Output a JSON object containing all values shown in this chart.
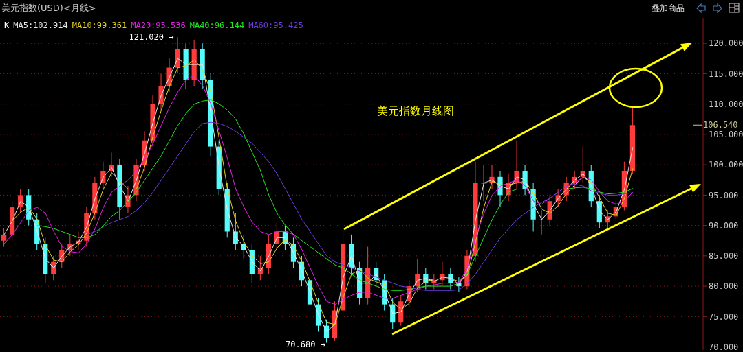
{
  "chart_data": {
    "type": "candlestick",
    "title": "美元指数(USD)<月线>",
    "categories": [
      null,
      null,
      null,
      null,
      null,
      null,
      null,
      null,
      null,
      null,
      null,
      null,
      null,
      null,
      null,
      null,
      null,
      null,
      null,
      null,
      null,
      null,
      null,
      null,
      null,
      null,
      null,
      null,
      null,
      null,
      null,
      null,
      null,
      null,
      null,
      null,
      null,
      null,
      null,
      null,
      null,
      null,
      null,
      null,
      null,
      null,
      null,
      null,
      null,
      null,
      null,
      null,
      null,
      null,
      null,
      null,
      null,
      null,
      null,
      null,
      null,
      null,
      null,
      null,
      null,
      null,
      null,
      null,
      null,
      null,
      null,
      null,
      null,
      null,
      null,
      null,
      null,
      null,
      null,
      null,
      null,
      null,
      null,
      null,
      null
    ],
    "series": [
      {
        "ohlc": [
          [
            87.5,
            89.5,
            86.5,
            88.5
          ],
          [
            88.5,
            94,
            87.5,
            93
          ],
          [
            93,
            96,
            92,
            95
          ],
          [
            95,
            96,
            90,
            91
          ],
          [
            91,
            92,
            86,
            87
          ],
          [
            87,
            88,
            80.5,
            82
          ],
          [
            82,
            85,
            81,
            84
          ],
          [
            84,
            87,
            83,
            86
          ],
          [
            86,
            88.5,
            85,
            87
          ],
          [
            87,
            89,
            86,
            87.5
          ],
          [
            87.5,
            93,
            86.5,
            92
          ],
          [
            92,
            98,
            91,
            97
          ],
          [
            97,
            100.5,
            96,
            99
          ],
          [
            99,
            102,
            98,
            100
          ],
          [
            100,
            101,
            91,
            93
          ],
          [
            93,
            96.5,
            92,
            95
          ],
          [
            95,
            101,
            94,
            100
          ],
          [
            100,
            105.5,
            99,
            104
          ],
          [
            104,
            111.5,
            103,
            110
          ],
          [
            110,
            115,
            109,
            113
          ],
          [
            113,
            117.5,
            112,
            116
          ],
          [
            116,
            121.02,
            115,
            119
          ],
          [
            119,
            120,
            112.5,
            114
          ],
          [
            114,
            120.5,
            113,
            119
          ],
          [
            119,
            120,
            112.5,
            114
          ],
          [
            114,
            115,
            101.5,
            103
          ],
          [
            103,
            104,
            95,
            96
          ],
          [
            96,
            97,
            88,
            89
          ],
          [
            89,
            92,
            86,
            87
          ],
          [
            87,
            88.5,
            84.5,
            86
          ],
          [
            86,
            87,
            80.5,
            82
          ],
          [
            82,
            85,
            81,
            83
          ],
          [
            83,
            88.5,
            82,
            87
          ],
          [
            87,
            90.5,
            86,
            89
          ],
          [
            89,
            90,
            86,
            87
          ],
          [
            87,
            88,
            83,
            84
          ],
          [
            84,
            85,
            80,
            81
          ],
          [
            81,
            82,
            76,
            77
          ],
          [
            77,
            78,
            72.5,
            73.5
          ],
          [
            73.5,
            74.5,
            70.68,
            71.5
          ],
          [
            71.5,
            77.5,
            71,
            76
          ],
          [
            76,
            89.5,
            75,
            87
          ],
          [
            87,
            88.5,
            82,
            83
          ],
          [
            83,
            84,
            77,
            78
          ],
          [
            78,
            86.5,
            77,
            83
          ],
          [
            83,
            84,
            80,
            81
          ],
          [
            81,
            82,
            76,
            77
          ],
          [
            77,
            78,
            73,
            74
          ],
          [
            74,
            78.5,
            73.5,
            77.5
          ],
          [
            77.5,
            81,
            76.5,
            80
          ],
          [
            80,
            84.5,
            79,
            82
          ],
          [
            82,
            83,
            79.5,
            80.5
          ],
          [
            80.5,
            82,
            79.5,
            81
          ],
          [
            81,
            84,
            80,
            82
          ],
          [
            82,
            83,
            79.5,
            80.5
          ],
          [
            80.5,
            81.5,
            79,
            80
          ],
          [
            80,
            86,
            79.5,
            85
          ],
          [
            85,
            100.5,
            84,
            97
          ],
          [
            97,
            100,
            94,
            97
          ],
          [
            97,
            100,
            96,
            98
          ],
          [
            98,
            99,
            93,
            95
          ],
          [
            95,
            98.5,
            94,
            97
          ],
          [
            97,
            104,
            96,
            99
          ],
          [
            99,
            100,
            95,
            96
          ],
          [
            96,
            97,
            89,
            91
          ],
          [
            91,
            92.5,
            88.5,
            91
          ],
          [
            91,
            95,
            90,
            94
          ],
          [
            94,
            96,
            93,
            95
          ],
          [
            95,
            98,
            94,
            97
          ],
          [
            97,
            99,
            96,
            98
          ],
          [
            98,
            103,
            97,
            99
          ],
          [
            99,
            100,
            93,
            94
          ],
          [
            94,
            95,
            89.5,
            90.5
          ],
          [
            90.5,
            92.5,
            89.5,
            91.5
          ],
          [
            91.5,
            94,
            91,
            93
          ],
          [
            93,
            100.5,
            92.5,
            99
          ],
          [
            99,
            109.3,
            98.5,
            106.54
          ],
          null,
          null,
          null,
          null,
          null,
          null,
          null,
          null
        ]
      },
      {
        "name": "MA5:102.914",
        "type": "line",
        "color": "#e8e8e8",
        "values": [
          88.5,
          90.8,
          94,
          93,
          89,
          84.5,
          83,
          85,
          86.5,
          87.3,
          89.8,
          94.5,
          98,
          99.5,
          96.5,
          94,
          97.5,
          102,
          107,
          111.5,
          114.5,
          117.5,
          116.5,
          116.5,
          116.5,
          108.5,
          99.5,
          92.5,
          88,
          86.5,
          84,
          82.5,
          85,
          88,
          88,
          85.5,
          82.5,
          79,
          75.3,
          72.5,
          73.8,
          81.5,
          85,
          80.5,
          80.5,
          82,
          79,
          75.5,
          75.8,
          78.8,
          81,
          81.3,
          80.8,
          81.5,
          81.3,
          80.3,
          82.5,
          91,
          97,
          97.5,
          96.5,
          96,
          98,
          97.5,
          93.5,
          91,
          92.5,
          94.5,
          96,
          97.5,
          98.5,
          96.5,
          92.3,
          91,
          92.3,
          96,
          102.9,
          null,
          null,
          null,
          null,
          null,
          null,
          null,
          null
        ]
      },
      {
        "name": "MA10:99.361",
        "type": "line",
        "color": "#e6d21e",
        "values": [
          null,
          90.8,
          92.2,
          93,
          91,
          86.7,
          84.3,
          84,
          85.7,
          86.8,
          88.8,
          92.2,
          96,
          98.7,
          97.3,
          96,
          96,
          99.7,
          104.7,
          109,
          113,
          116,
          116.3,
          117.3,
          115.7,
          112,
          104.3,
          96,
          90.7,
          87.3,
          85,
          83.7,
          84,
          86.3,
          87.7,
          86.7,
          84,
          80.7,
          77.2,
          74,
          73.7,
          78.2,
          82,
          82.7,
          81.3,
          80.7,
          80.3,
          77.3,
          76.2,
          77.2,
          79.8,
          80.8,
          81.2,
          81.2,
          81.2,
          80.8,
          81.8,
          87.3,
          93,
          97.3,
          96.7,
          96.7,
          97,
          97.3,
          95.3,
          92.7,
          92,
          93.3,
          95.3,
          96.7,
          98,
          97,
          94.5,
          92,
          91.7,
          94.5,
          99.4,
          null,
          null,
          null,
          null,
          null,
          null,
          null,
          null
        ]
      },
      {
        "name": "MA20:95.536",
        "type": "line",
        "color": "#e61ee6",
        "values": [
          87,
          88.5,
          90.5,
          92.5,
          93,
          92,
          89,
          86.5,
          85.7,
          85.5,
          87,
          89.5,
          93,
          95.5,
          96.5,
          97.5,
          99,
          101,
          103.5,
          106.5,
          109.5,
          112,
          114,
          114.7,
          113,
          110,
          105.5,
          101,
          96,
          93,
          90.5,
          89,
          88.5,
          89,
          89,
          88.5,
          86,
          83,
          80,
          77.5,
          77,
          77.8,
          78.5,
          79,
          79,
          78.5,
          78,
          78,
          78.5,
          79,
          79.5,
          80,
          80.2,
          80.5,
          80.5,
          80.6,
          83,
          88,
          92,
          95,
          96.5,
          97,
          97.5,
          96.5,
          94,
          93.5,
          94.5,
          95.5,
          96.5,
          97,
          98,
          97.5,
          95.5,
          94,
          93.5,
          94,
          95.5,
          null,
          null,
          null,
          null,
          null,
          null,
          null,
          null
        ]
      },
      {
        "name": "MA40:96.144",
        "type": "line",
        "color": "#1ee61e",
        "values": [
          null,
          null,
          null,
          null,
          90,
          89.8,
          89.5,
          89,
          88.5,
          88,
          88,
          88.5,
          90,
          91.5,
          92.5,
          94,
          95.5,
          97.5,
          99.5,
          101.5,
          104,
          106.5,
          108.5,
          110,
          110.5,
          110.7,
          110,
          109,
          107.5,
          105,
          102,
          99,
          95,
          92,
          90,
          88.5,
          87.5,
          86.5,
          85.5,
          84.5,
          83.5,
          83,
          82,
          81,
          80.5,
          80,
          79.5,
          79.3,
          79.3,
          79.5,
          79.8,
          80,
          80,
          80,
          80,
          80.5,
          82,
          85,
          88,
          91,
          93.5,
          95.5,
          96,
          96,
          96,
          96,
          96,
          96,
          96,
          96.2,
          96.3,
          96,
          95.5,
          95.2,
          95.3,
          95.5,
          96.1,
          null,
          null,
          null,
          null,
          null,
          null,
          null,
          null
        ]
      },
      {
        "name": "MA60:95.425",
        "type": "line",
        "color": "#6e3cdc",
        "values": [
          null,
          null,
          null,
          null,
          null,
          null,
          null,
          null,
          null,
          null,
          88.5,
          89,
          89.8,
          90.5,
          91,
          91.5,
          92.5,
          93.8,
          95.5,
          97.5,
          99.5,
          101.5,
          103.5,
          105.5,
          106.8,
          107,
          106.8,
          106.3,
          105.5,
          104.5,
          103.5,
          102,
          100.5,
          98.5,
          96,
          93.5,
          91,
          89,
          87,
          85,
          84,
          83.5,
          83,
          82.5,
          82,
          81.5,
          81,
          80.5,
          80,
          79.8,
          79.5,
          79.3,
          79.3,
          79.3,
          79.3,
          79.4,
          80.5,
          82,
          84,
          86,
          88,
          89.5,
          91,
          92,
          93,
          93.8,
          94.5,
          95.5,
          96.5,
          96.8,
          96.5,
          95.7,
          95.3,
          95,
          95,
          95.2,
          95.4,
          null,
          null,
          null,
          null,
          null,
          null,
          null,
          null
        ]
      }
    ],
    "ylim": [
      69.5,
      124.2
    ],
    "yticks": [
      {
        "value": 70,
        "label": "70.000"
      },
      {
        "value": 75,
        "label": "75.000"
      },
      {
        "value": 80,
        "label": "80.000"
      },
      {
        "value": 85,
        "label": "85.000"
      },
      {
        "value": 90,
        "label": "90.000"
      },
      {
        "value": 95,
        "label": "95.000"
      },
      {
        "value": 100,
        "label": "100.000"
      },
      {
        "value": 105,
        "label": "105.000"
      },
      {
        "value": 110,
        "label": "110.000"
      },
      {
        "value": 115,
        "label": "115.000"
      },
      {
        "value": 120,
        "label": "120.000"
      }
    ],
    "tick_labels": "y",
    "grid": "y",
    "legend": "top left",
    "annotations": [
      "121.020 →",
      "70.680 →",
      "106.540",
      "美元指数月线图",
      "叠加商品",
      "K"
    ]
  }
}
